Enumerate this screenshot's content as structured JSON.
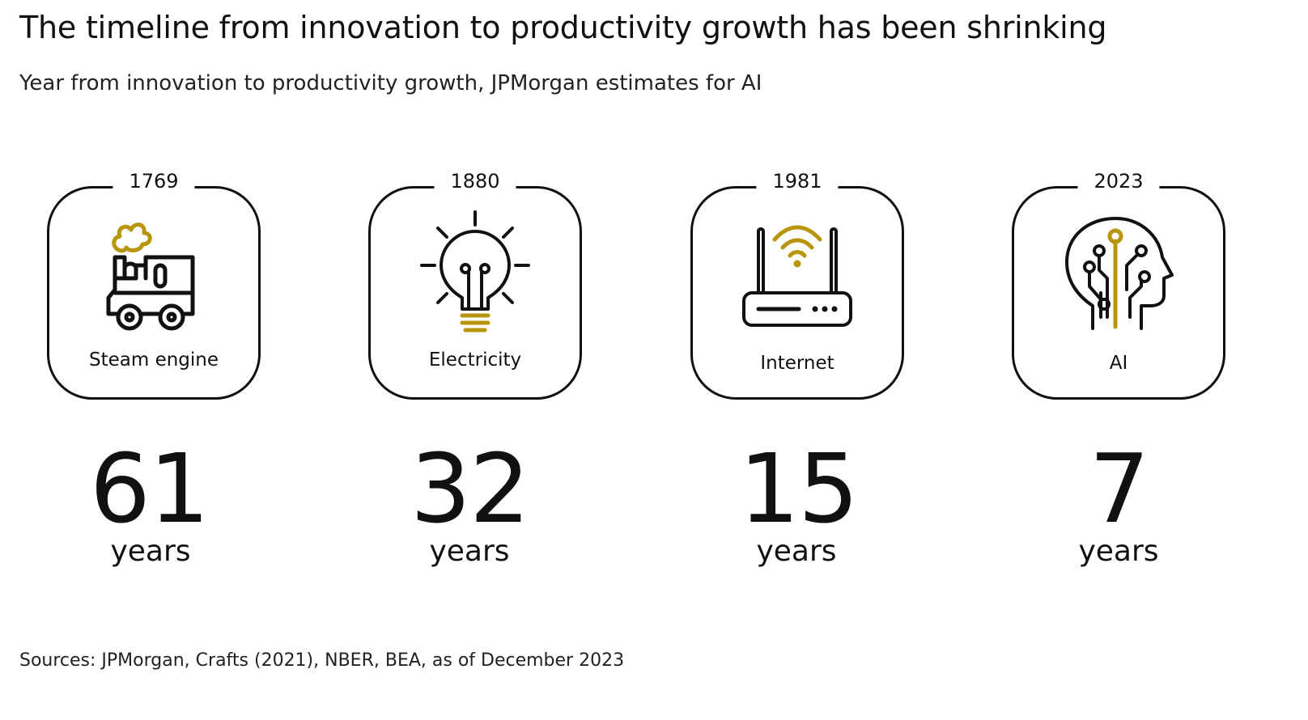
{
  "header": {
    "title": "The timeline from innovation to productivity growth has been shrinking",
    "subtitle": "Year from innovation to productivity growth, JPMorgan estimates for AI"
  },
  "colors": {
    "accent": "#B8960C",
    "ink": "#111111"
  },
  "innovations": [
    {
      "year": "1769",
      "label": "Steam engine",
      "icon": "steam-locomotive-icon",
      "value": "61",
      "unit": "years"
    },
    {
      "year": "1880",
      "label": "Electricity",
      "icon": "light-bulb-icon",
      "value": "32",
      "unit": "years"
    },
    {
      "year": "1981",
      "label": "Internet",
      "icon": "wifi-router-icon",
      "value": "15",
      "unit": "years"
    },
    {
      "year": "2023",
      "label": "AI",
      "icon": "ai-head-icon",
      "value": "7",
      "unit": "years"
    }
  ],
  "footer": {
    "source": "Sources: JPMorgan, Crafts (2021), NBER, BEA, as of December 2023"
  }
}
